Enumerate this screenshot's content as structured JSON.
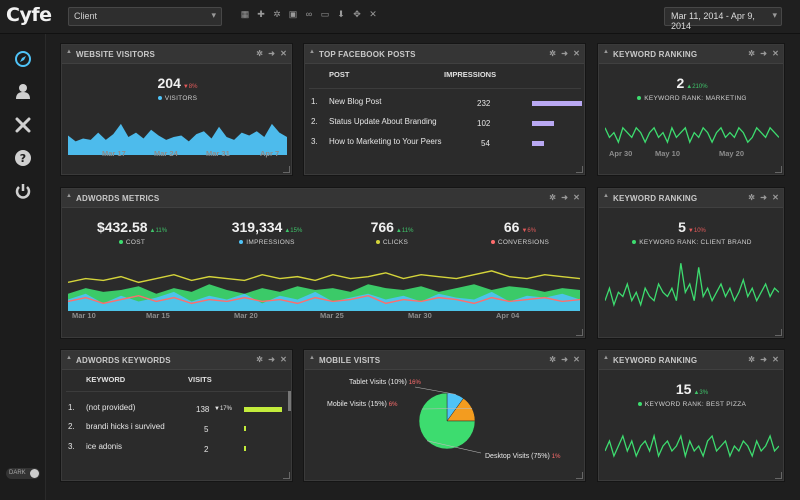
{
  "app": {
    "logo": "Cyfe"
  },
  "topbar": {
    "client": "Client",
    "date_range": "Mar 11, 2014 - Apr 9, 2014",
    "icons": [
      "grid-icon",
      "plus-icon",
      "gear-icon",
      "image-icon",
      "link-icon",
      "monitor-icon",
      "download-icon",
      "move-icon",
      "close-icon"
    ]
  },
  "sidebar": {
    "items": [
      {
        "name": "compass-icon"
      },
      {
        "name": "user-icon"
      },
      {
        "name": "tools-icon"
      },
      {
        "name": "help-icon"
      },
      {
        "name": "power-icon"
      }
    ],
    "dark_label": "DARK"
  },
  "colors": {
    "visitors": "#4fc3f7",
    "green": "#3ddc6f",
    "bar_purple": "#b9a8f2",
    "bar_lime": "#c3ec3c",
    "yellow": "#d4d43a",
    "red": "#ff6d6d"
  },
  "website_visitors": {
    "title": "WEBSITE VISITORS",
    "value": "204",
    "change": "▼8%",
    "label": "VISITORS",
    "axis": [
      "Mar 17",
      "Mar 24",
      "Mar 31",
      "Apr 7"
    ],
    "series": [
      12,
      8,
      10,
      9,
      14,
      9,
      13,
      20,
      11,
      14,
      10,
      16,
      12,
      9,
      11,
      12,
      8,
      13,
      15,
      10,
      18,
      11,
      9,
      14,
      12,
      15,
      11,
      20,
      14,
      11
    ]
  },
  "facebook_posts": {
    "title": "TOP FACEBOOK POSTS",
    "col_post": "POST",
    "col_impressions": "IMPRESSIONS",
    "rows": [
      {
        "rank": "1.",
        "post": "New Blog Post",
        "impressions": "232",
        "value": 232
      },
      {
        "rank": "2.",
        "post": "Status Update About Branding",
        "impressions": "102",
        "value": 102
      },
      {
        "rank": "3.",
        "post": "How to Marketing to Your Peers",
        "impressions": "54",
        "value": 54
      }
    ]
  },
  "keyword_ranking_1": {
    "title": "KEYWORD RANKING",
    "value": "2",
    "change": "▲210%",
    "label": "KEYWORD RANK: MARKETING",
    "axis": [
      "Apr 30",
      "May 10",
      "May 20"
    ],
    "series": [
      6,
      4,
      5,
      3,
      6,
      5,
      4,
      6,
      5,
      3,
      5,
      6,
      4,
      5,
      3,
      6,
      4,
      5,
      6,
      3,
      5,
      4,
      6,
      5,
      3,
      5,
      6,
      4,
      5,
      4,
      6,
      5,
      3,
      4,
      6,
      5,
      4,
      6,
      5,
      4
    ]
  },
  "adwords_metrics": {
    "title": "ADWORDS METRICS",
    "metrics": [
      {
        "value": "$432.58",
        "change": "▲11%",
        "dir": "up",
        "label": "COST",
        "color": "#3ddc6f"
      },
      {
        "value": "319,334",
        "change": "▲15%",
        "dir": "up",
        "label": "IMPRESSIONS",
        "color": "#4fc3f7"
      },
      {
        "value": "766",
        "change": "▲11%",
        "dir": "up",
        "label": "CLICKS",
        "color": "#d4d43a"
      },
      {
        "value": "66",
        "change": "▼6%",
        "dir": "down",
        "label": "CONVERSIONS",
        "color": "#ff6d6d"
      }
    ],
    "axis": [
      "Mar 10",
      "Mar 15",
      "Mar 20",
      "Mar 25",
      "Mar 30",
      "Apr 04"
    ],
    "series": {
      "green": [
        9,
        12,
        10,
        11,
        13,
        9,
        12,
        10,
        14,
        11,
        9,
        12,
        10,
        13,
        11,
        12,
        10,
        14,
        12,
        11,
        13,
        10,
        12,
        14,
        11,
        13,
        12,
        10,
        12,
        11
      ],
      "blue": [
        6,
        9,
        4,
        8,
        5,
        7,
        10,
        5,
        8,
        6,
        9,
        4,
        8,
        6,
        10,
        5,
        7,
        9,
        6,
        8,
        5,
        9,
        7,
        6,
        10,
        5,
        8,
        7,
        9,
        6
      ],
      "yellow": [
        15,
        17,
        16,
        18,
        15,
        17,
        19,
        16,
        18,
        17,
        16,
        19,
        17,
        18,
        16,
        19,
        17,
        18,
        20,
        17,
        19,
        18,
        17,
        19,
        21,
        18,
        17,
        19,
        18,
        17
      ],
      "red": [
        5,
        7,
        4,
        6,
        8,
        5,
        7,
        4,
        6,
        5,
        7,
        5,
        6,
        4,
        7,
        5,
        6,
        8,
        4,
        6,
        5,
        7,
        6,
        4,
        7,
        5,
        6,
        7,
        5,
        6
      ]
    }
  },
  "keyword_ranking_2": {
    "title": "KEYWORD RANKING",
    "value": "5",
    "change": "▼10%",
    "label": "KEYWORD RANK: CLIENT BRAND",
    "series": [
      3,
      6,
      2,
      5,
      4,
      7,
      3,
      5,
      2,
      6,
      4,
      3,
      7,
      5,
      4,
      6,
      3,
      12,
      5,
      7,
      3,
      11,
      4,
      6,
      3,
      5,
      7,
      4,
      6,
      3,
      5,
      8,
      4,
      6,
      3,
      5,
      7,
      4,
      6,
      5
    ]
  },
  "adwords_keywords": {
    "title": "ADWORDS KEYWORDS",
    "col_keyword": "KEYWORD",
    "col_visits": "VISITS",
    "rows": [
      {
        "rank": "1.",
        "keyword": "(not provided)",
        "visits": "138",
        "change": "▼17%",
        "value": 138
      },
      {
        "rank": "2.",
        "keyword": "brandi hicks i survived",
        "visits": "5",
        "change": "",
        "value": 5
      },
      {
        "rank": "3.",
        "keyword": "ice adonis",
        "visits": "2",
        "change": "",
        "value": 2
      }
    ]
  },
  "mobile_visits": {
    "title": "MOBILE VISITS",
    "slices": [
      {
        "label": "Tablet Visits (10%)",
        "change": "16%",
        "value": 10,
        "color": "#4fc3f7"
      },
      {
        "label": "Mobile Visits (15%)",
        "change": "6%",
        "value": 15,
        "color": "#f39c1f"
      },
      {
        "label": "Desktop Visits (75%)",
        "change": "1%",
        "value": 75,
        "color": "#3ddc6f"
      }
    ]
  },
  "keyword_ranking_3": {
    "title": "KEYWORD RANKING",
    "value": "15",
    "change": "▲3%",
    "label": "KEYWORD RANK: BEST PIZZA",
    "series": [
      4,
      6,
      3,
      5,
      7,
      4,
      6,
      3,
      5,
      6,
      4,
      7,
      3,
      5,
      6,
      4,
      5,
      7,
      3,
      6,
      4,
      5,
      3,
      6,
      7,
      4,
      5,
      6,
      3,
      5,
      4,
      6,
      5,
      3,
      6,
      4,
      5,
      7,
      4,
      5
    ]
  }
}
